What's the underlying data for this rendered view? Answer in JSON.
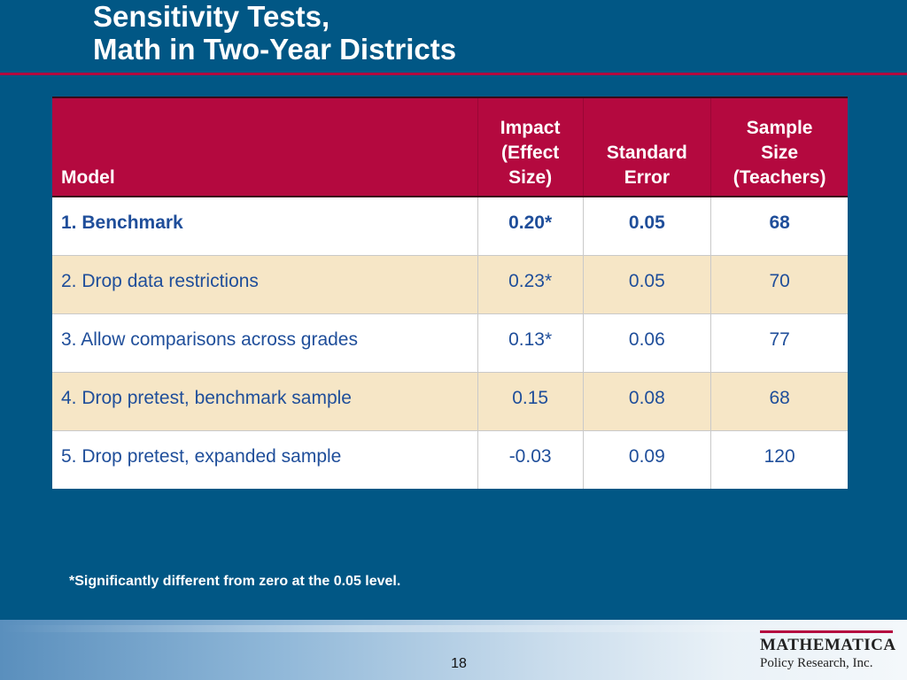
{
  "slide": {
    "title_lines": [
      "Sensitivity Tests,",
      "Math in Two-Year Districts"
    ],
    "footnote": "*Significantly different from zero at the 0.05 level.",
    "page_number": "18",
    "colors": {
      "background": "#015785",
      "accent": "#b4093f",
      "row_tan": "#f6e6c6",
      "body_text": "#1f4e9a"
    }
  },
  "table": {
    "headers": {
      "model": "Model",
      "impact": [
        "Impact",
        "(Effect",
        "Size)"
      ],
      "standard_error": [
        "Standard",
        "Error"
      ],
      "sample_size": [
        "Sample",
        "Size",
        "(Teachers)"
      ]
    },
    "rows": [
      {
        "model": "1. Benchmark",
        "impact": "0.20*",
        "se": "0.05",
        "n": "68"
      },
      {
        "model": "2. Drop data restrictions",
        "impact": "0.23*",
        "se": "0.05",
        "n": "70"
      },
      {
        "model": "3. Allow comparisons across grades",
        "impact": "0.13*",
        "se": "0.06",
        "n": "77"
      },
      {
        "model": "4. Drop pretest, benchmark sample",
        "impact": "0.15",
        "se": "0.08",
        "n": "68"
      },
      {
        "model": "5. Drop pretest, expanded sample",
        "impact": "-0.03",
        "se": "0.09",
        "n": "120"
      }
    ]
  },
  "logo": {
    "main": "MATHEMATICA",
    "sub": "Policy Research, Inc."
  }
}
